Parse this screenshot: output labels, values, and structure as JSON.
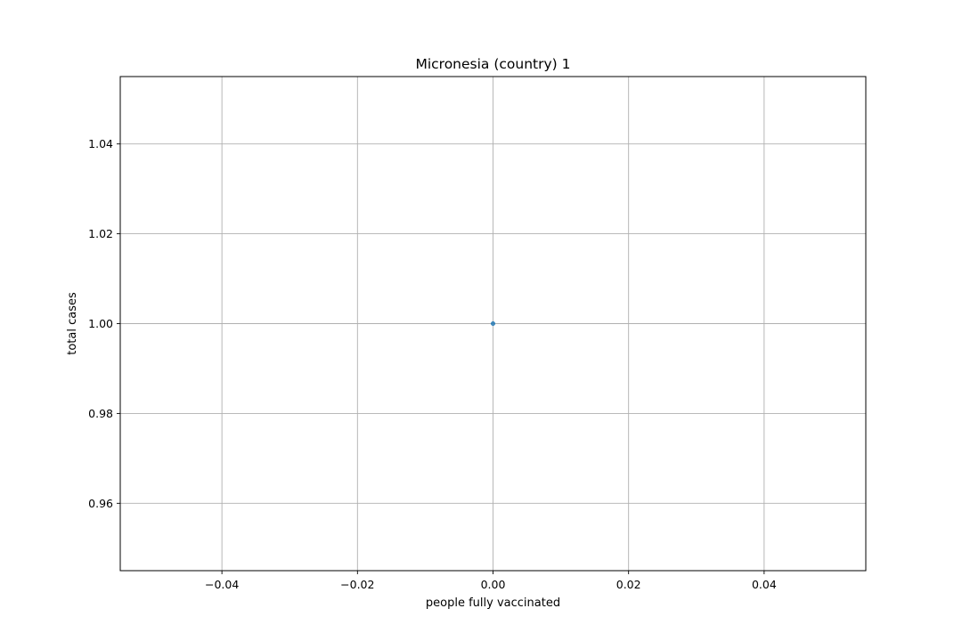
{
  "chart_data": {
    "type": "scatter",
    "title": "Micronesia (country) 1",
    "xlabel": "people fully vaccinated",
    "ylabel": "total cases",
    "xlim": [
      -0.055,
      0.055
    ],
    "ylim": [
      0.945,
      1.055
    ],
    "x_ticks": [
      -0.04,
      -0.02,
      0.0,
      0.02,
      0.04
    ],
    "x_tick_labels": [
      "−0.04",
      "−0.02",
      "0.00",
      "0.02",
      "0.04"
    ],
    "y_ticks": [
      0.96,
      0.98,
      1.0,
      1.02,
      1.04
    ],
    "y_tick_labels": [
      "0.96",
      "0.98",
      "1.00",
      "1.02",
      "1.04"
    ],
    "grid": true,
    "series": [
      {
        "color": "#1f77b4",
        "points": [
          {
            "x": 0.0,
            "y": 1.0
          }
        ]
      }
    ]
  },
  "colors": {
    "grid": "#b0b0b0",
    "axes": "#000000",
    "background": "#ffffff"
  }
}
